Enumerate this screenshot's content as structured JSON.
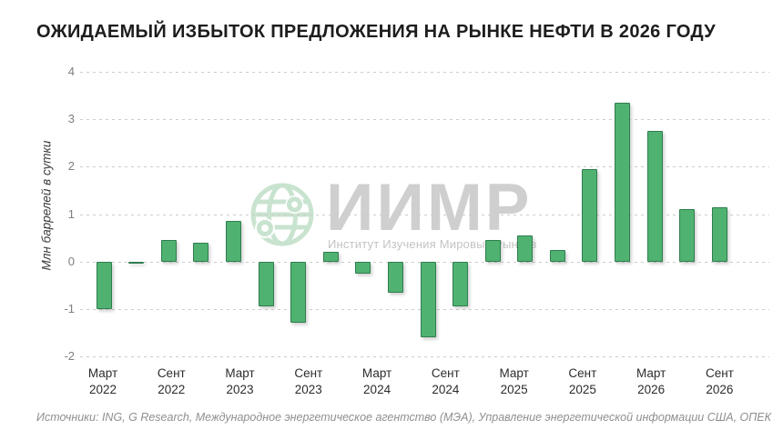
{
  "title": "ОЖИДАЕМЫЙ ИЗБЫТОК ПРЕДЛОЖЕНИЯ НА РЫНКЕ НЕФТИ В 2026 ГОДУ",
  "watermark": {
    "brand": "ИИМР",
    "subtitle": "Институт Изучения Мировых Рынков",
    "globe_icon": "globe-network-icon",
    "brand_color": "#cfcfcf",
    "globe_color": "#c8e3cf"
  },
  "source_line": "Источники: ING, G Research, Международное энергетическое агентство (МЭА), Управление энергетической информации США, ОПЕК",
  "chart_data": {
    "type": "bar",
    "title": "ОЖИДАЕМЫЙ ИЗБЫТОК ПРЕДЛОЖЕНИЯ НА РЫНКЕ НЕФТИ В 2026 ГОДУ",
    "xlabel": "",
    "ylabel": "Млн баррелей в сутки",
    "ylim": [
      -2,
      4
    ],
    "y_ticks": [
      4,
      3,
      2,
      1,
      0,
      -1,
      -2
    ],
    "grid": "horizontal-dashed",
    "legend": "none",
    "x_tick_labels": [
      "Март 2022",
      "Сент 2022",
      "Март 2023",
      "Сент 2023",
      "Март 2024",
      "Сент 2024",
      "Март 2025",
      "Сент 2025",
      "Март 2026",
      "Сент 2026"
    ],
    "values": [
      -1.0,
      -0.05,
      0.45,
      0.4,
      0.85,
      -0.95,
      -1.3,
      0.2,
      -0.25,
      -0.65,
      -1.6,
      -0.95,
      0.45,
      0.55,
      0.25,
      1.95,
      3.35,
      2.75,
      1.1,
      1.15
    ],
    "bars_per_tick_label": 2,
    "bar_color": "#50B270",
    "bar_border_color": "#2F7D4F",
    "grid_color": "#cccccc"
  }
}
